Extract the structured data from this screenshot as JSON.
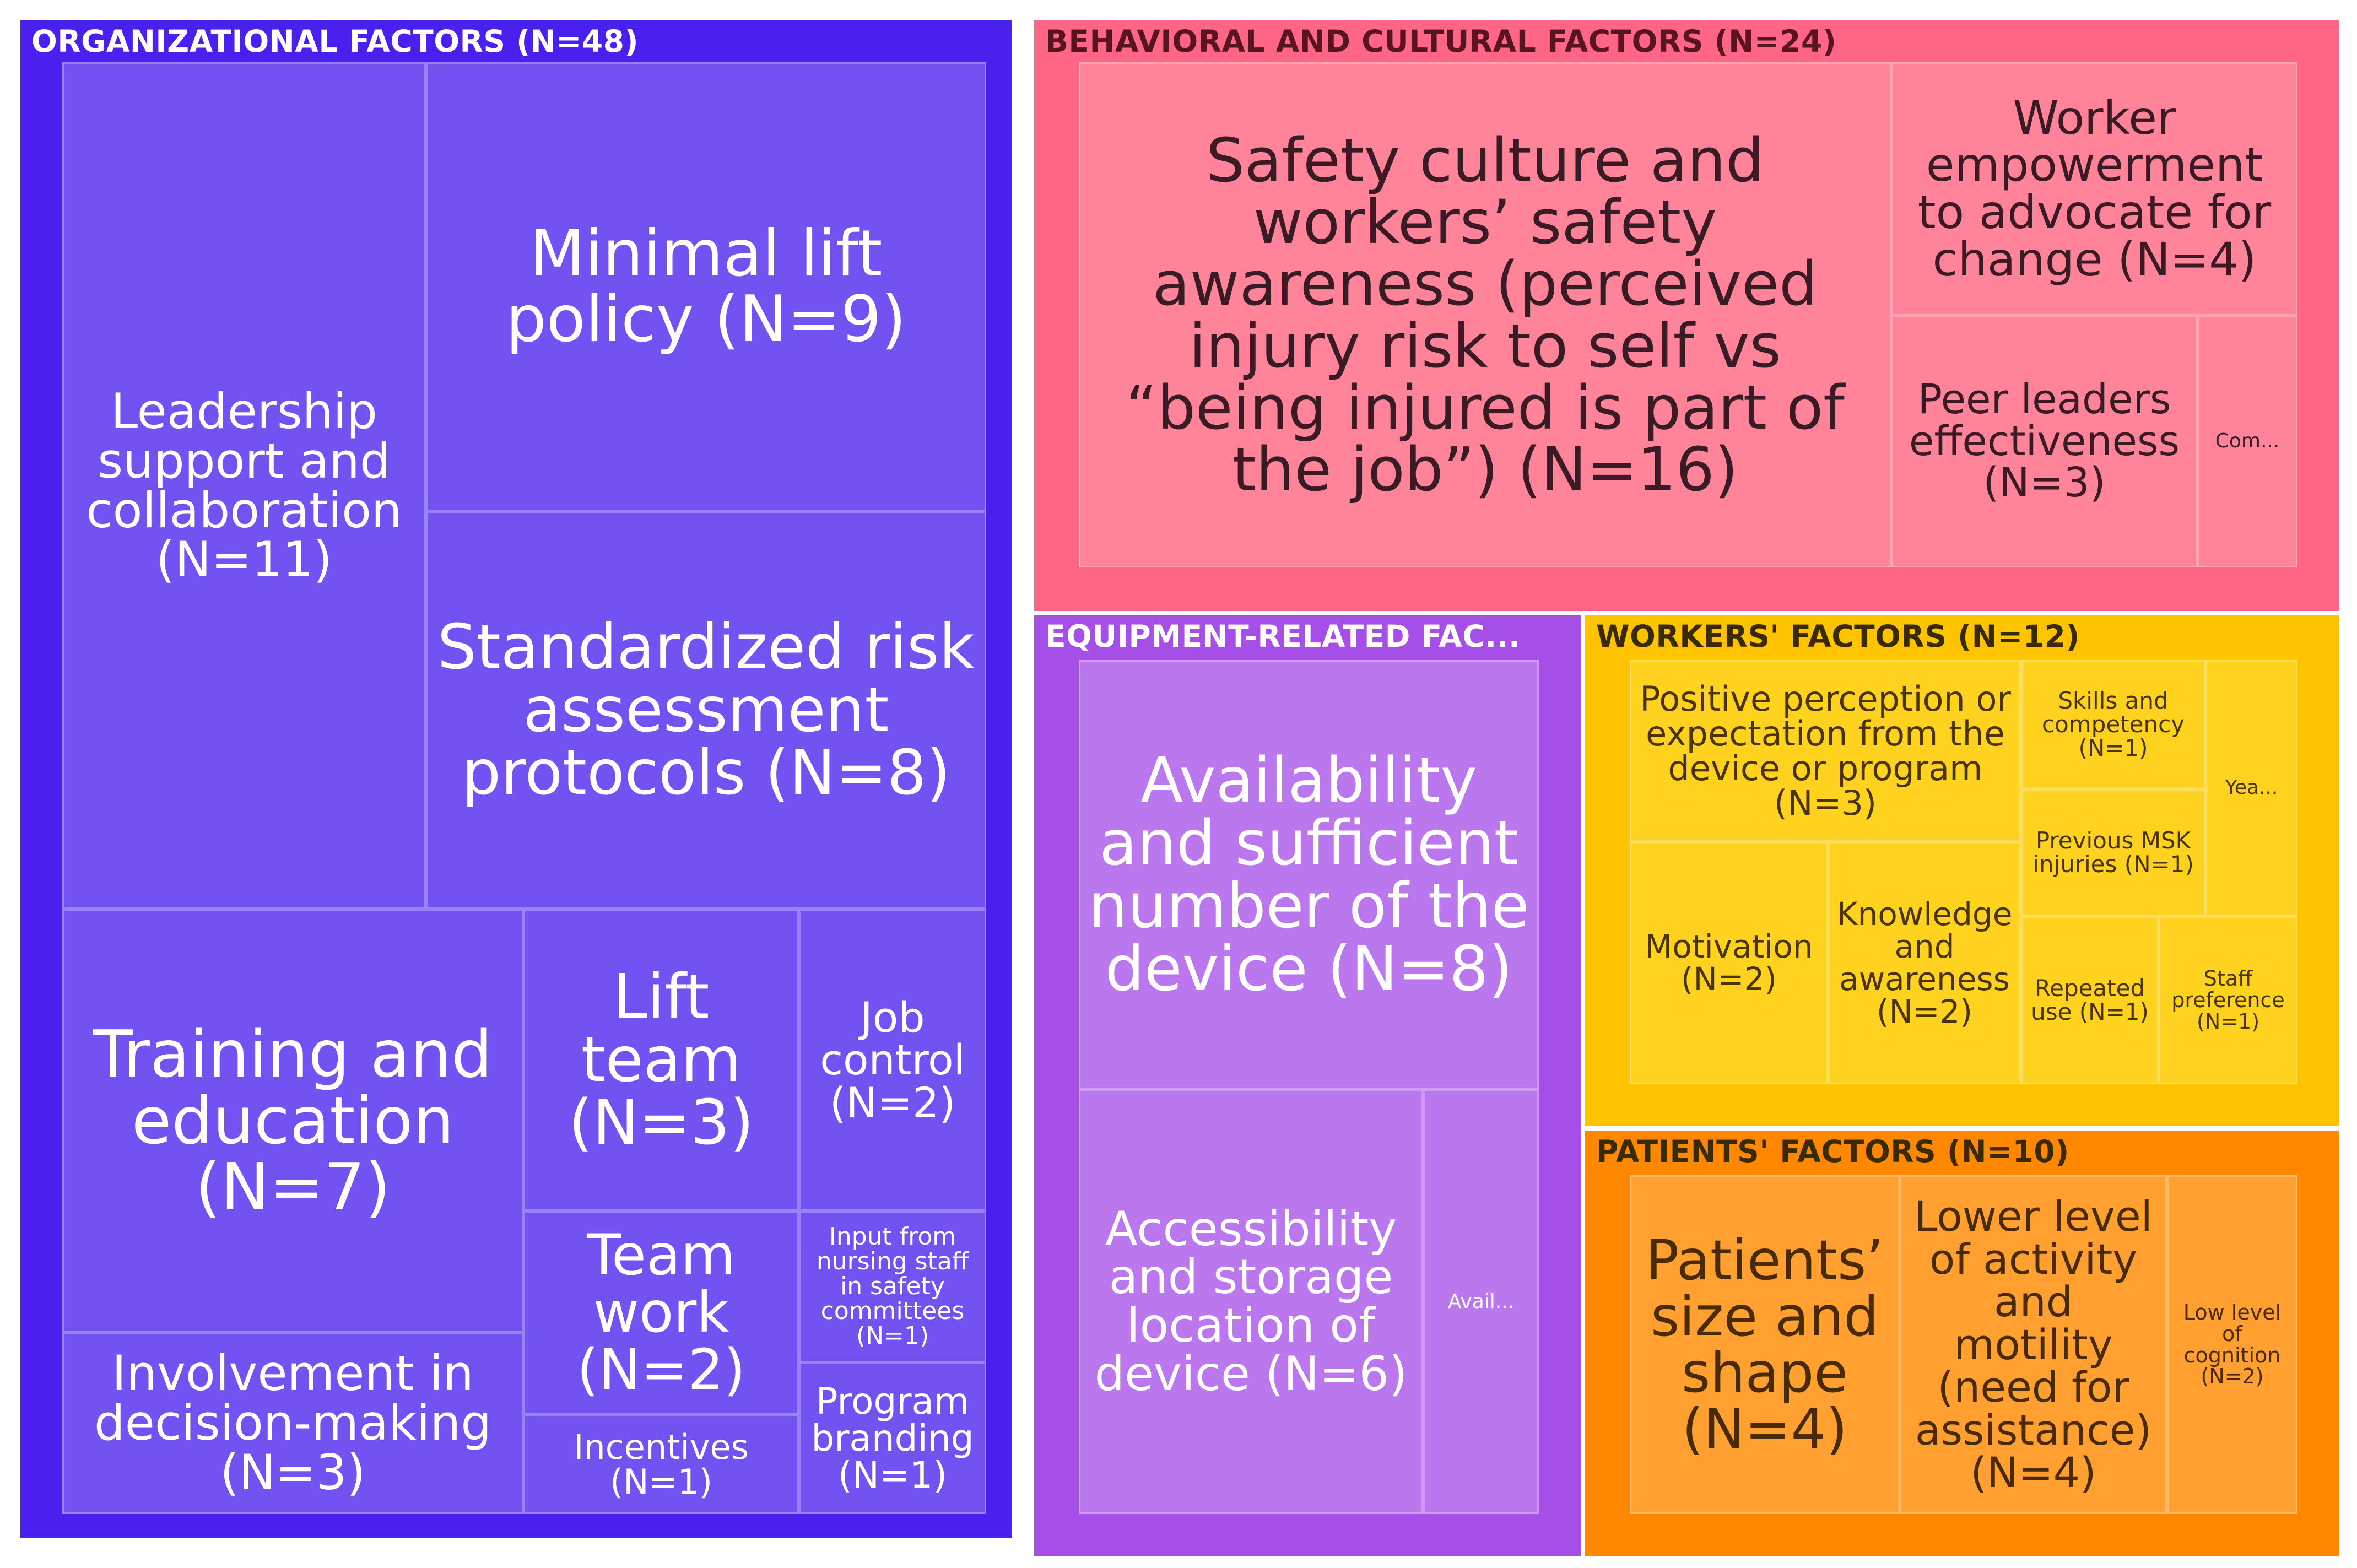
{
  "chart_data": {
    "type": "treemap",
    "groups": [
      {
        "name": "ORGANIZATIONAL FACTORS (N=48)",
        "color": "#4a20ee",
        "cell_color": "#7252f0",
        "text_color": "#ffffff",
        "items": [
          {
            "label": "Leadership support and collaboration (N=11)",
            "value": 11
          },
          {
            "label": "Minimal lift policy (N=9)",
            "value": 9
          },
          {
            "label": "Standardized risk assessment protocols (N=8)",
            "value": 8
          },
          {
            "label": "Training and education (N=7)",
            "value": 7
          },
          {
            "label": "Lift team (N=3)",
            "value": 3
          },
          {
            "label": "Job control (N=2)",
            "value": 2
          },
          {
            "label": "Team work (N=2)",
            "value": 2
          },
          {
            "label": "Input from nursing staff in safety committees (N=1)",
            "value": 1
          },
          {
            "label": "Involvement in decision-making (N=3)",
            "value": 3
          },
          {
            "label": "Incentives (N=1)",
            "value": 1
          },
          {
            "label": "Program branding (N=1)",
            "value": 1
          }
        ]
      },
      {
        "name": "BEHAVIORAL AND CULTURAL FACTORS (N=24)",
        "color": "#ff6584",
        "cell_color": "#ff8399",
        "text_color": "#3a1a24",
        "items": [
          {
            "label": "Safety culture and workers’ safety awareness (perceived injury risk to self vs “being injured is part of the job”) (N=16)",
            "value": 16
          },
          {
            "label": "Worker empowerment to advocate for change (N=4)",
            "value": 4
          },
          {
            "label": "Peer leaders effectiveness (N=3)",
            "value": 3
          },
          {
            "label": "Com...",
            "value": 1
          }
        ]
      },
      {
        "name": "EQUIPMENT-RELATED FAC...",
        "color": "#a64fe8",
        "cell_color": "#bb77ee",
        "text_color": "#ffffff",
        "items": [
          {
            "label": "Availability and sufficient number of the device (N=8)",
            "value": 8
          },
          {
            "label": "Accessibility and storage location of device (N=6)",
            "value": 6
          },
          {
            "label": "Avail...",
            "value": 1
          }
        ]
      },
      {
        "name": "WORKERS' FACTORS (N=12)",
        "color": "#ffc300",
        "cell_color": "#ffd21f",
        "text_color": "#4a3500",
        "items": [
          {
            "label": "Positive perception or expectation from the device or program (N=3)",
            "value": 3
          },
          {
            "label": "Skills and competency (N=1)",
            "value": 1
          },
          {
            "label": "Yea...",
            "value": 1
          },
          {
            "label": "Previous MSK injuries (N=1)",
            "value": 1
          },
          {
            "label": "Motivation (N=2)",
            "value": 2
          },
          {
            "label": "Knowledge and awareness (N=2)",
            "value": 2
          },
          {
            "label": "Repeated use (N=1)",
            "value": 1
          },
          {
            "label": "Staff preference (N=1)",
            "value": 1
          }
        ]
      },
      {
        "name": "PATIENTS' FACTORS (N=10)",
        "color": "#ff8800",
        "cell_color": "#ffa030",
        "text_color": "#4a2a00",
        "items": [
          {
            "label": "Patients’ size and shape (N=4)",
            "value": 4
          },
          {
            "label": "Lower level of activity and motility (need for assistance) (N=4)",
            "value": 4
          },
          {
            "label": "Low level of cognition (N=2)",
            "value": 2
          }
        ]
      }
    ]
  }
}
